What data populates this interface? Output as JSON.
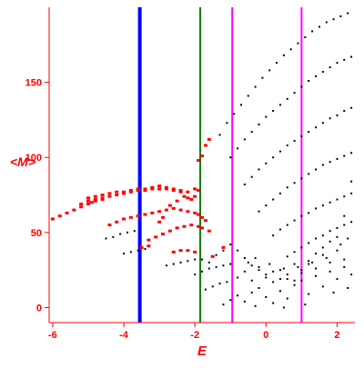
{
  "colors": {
    "axis": "#ff0000",
    "tick_label": "#ff0000",
    "red_points": "#ff0000",
    "black_points": "#000000",
    "blue_line": "#0000ff",
    "green_line": "#008000",
    "magenta_line": "#ff00ff"
  },
  "chart_data": {
    "type": "scatter",
    "title": "",
    "xlabel": "E",
    "ylabel": "<M>",
    "xlim": [
      -6.1,
      2.5
    ],
    "ylim": [
      -10,
      200
    ],
    "xticks": [
      -6,
      -4,
      -2,
      0,
      2
    ],
    "yticks": [
      0,
      50,
      100,
      150
    ],
    "grid": false,
    "legend": "none",
    "vertical_lines": [
      {
        "x": -3.55,
        "color": "#0000ff",
        "weight": "thick"
      },
      {
        "x": -1.85,
        "color": "#008000",
        "weight": "normal"
      },
      {
        "x": -0.95,
        "color": "#ff00ff",
        "weight": "normal"
      },
      {
        "x": 1.0,
        "color": "#ff00ff",
        "weight": "normal"
      }
    ],
    "series": [
      {
        "color": "#ff0000",
        "points": [
          [
            -6.0,
            59
          ],
          [
            -5.8,
            61
          ],
          [
            -5.6,
            63
          ],
          [
            -5.4,
            65
          ],
          [
            -5.2,
            67
          ],
          [
            -5.0,
            69
          ],
          [
            -4.9,
            70
          ],
          [
            -4.8,
            71
          ],
          [
            -4.6,
            72
          ],
          [
            -4.4,
            74
          ],
          [
            -4.2,
            75
          ],
          [
            -4.0,
            76
          ],
          [
            -3.8,
            77
          ],
          [
            -3.6,
            78
          ],
          [
            -3.4,
            78
          ],
          [
            -3.2,
            79
          ],
          [
            -3.0,
            79
          ],
          [
            -2.8,
            79
          ],
          [
            -2.6,
            78
          ],
          [
            -2.4,
            77
          ],
          [
            -2.2,
            73
          ],
          [
            -2.1,
            72
          ],
          [
            -2.0,
            74
          ],
          [
            -1.9,
            78
          ],
          [
            -5.0,
            73
          ],
          [
            -4.8,
            74
          ],
          [
            -4.6,
            75
          ],
          [
            -4.4,
            76
          ],
          [
            -4.2,
            77
          ],
          [
            -4.0,
            77
          ],
          [
            -3.8,
            78
          ],
          [
            -3.6,
            79
          ],
          [
            -3.4,
            79
          ],
          [
            -3.2,
            80
          ],
          [
            -3.0,
            81
          ],
          [
            -2.8,
            80
          ],
          [
            -2.6,
            79
          ],
          [
            -2.4,
            78
          ],
          [
            -2.2,
            77
          ],
          [
            -2.0,
            79
          ],
          [
            -5.2,
            69
          ],
          [
            -5.0,
            71
          ],
          [
            -4.8,
            72
          ],
          [
            -4.6,
            73
          ],
          [
            -4.4,
            55
          ],
          [
            -4.2,
            57
          ],
          [
            -4.0,
            59
          ],
          [
            -3.8,
            60
          ],
          [
            -3.6,
            61
          ],
          [
            -3.4,
            62
          ],
          [
            -3.2,
            63
          ],
          [
            -3.0,
            64
          ],
          [
            -2.8,
            65
          ],
          [
            -2.6,
            66
          ],
          [
            -2.4,
            65
          ],
          [
            -2.2,
            64
          ],
          [
            -2.0,
            63
          ],
          [
            -1.9,
            62
          ],
          [
            -1.8,
            60
          ],
          [
            -1.7,
            58
          ],
          [
            -3.3,
            45
          ],
          [
            -3.1,
            47
          ],
          [
            -2.9,
            49
          ],
          [
            -2.7,
            51
          ],
          [
            -2.5,
            53
          ],
          [
            -2.3,
            54
          ],
          [
            -2.1,
            55
          ],
          [
            -1.9,
            54
          ],
          [
            -1.8,
            53
          ],
          [
            -1.6,
            51
          ],
          [
            -3.5,
            40
          ],
          [
            -3.3,
            41
          ],
          [
            -2.6,
            37
          ],
          [
            -2.4,
            38
          ],
          [
            -2.2,
            38
          ],
          [
            -2.0,
            37
          ],
          [
            -1.5,
            34
          ],
          [
            -1.2,
            40
          ],
          [
            -1.9,
            98
          ],
          [
            -1.8,
            101
          ],
          [
            -1.7,
            108
          ],
          [
            -1.6,
            112
          ],
          [
            -2.3,
            74
          ],
          [
            -2.5,
            71
          ],
          [
            -2.7,
            68
          ],
          [
            -2.9,
            60
          ],
          [
            -3.0,
            57
          ]
        ]
      },
      {
        "color": "#000000",
        "points": [
          [
            -4.5,
            46
          ],
          [
            -4.3,
            47
          ],
          [
            -4.1,
            49
          ],
          [
            -3.9,
            50
          ],
          [
            -3.7,
            51
          ],
          [
            -4.0,
            36
          ],
          [
            -3.8,
            37
          ],
          [
            -3.6,
            38
          ],
          [
            -3.4,
            39
          ],
          [
            -2.8,
            28
          ],
          [
            -2.6,
            29
          ],
          [
            -2.4,
            30
          ],
          [
            -2.2,
            31
          ],
          [
            -2.0,
            32
          ],
          [
            -1.8,
            32
          ],
          [
            -2.0,
            22
          ],
          [
            -1.8,
            24
          ],
          [
            -1.6,
            26
          ],
          [
            -1.4,
            27
          ],
          [
            -1.2,
            28
          ],
          [
            -1.0,
            29
          ],
          [
            -1.7,
            12
          ],
          [
            -1.5,
            14
          ],
          [
            -1.3,
            16
          ],
          [
            -1.1,
            17
          ],
          [
            -1.3,
            115
          ],
          [
            -1.1,
            123
          ],
          [
            -0.9,
            129
          ],
          [
            -0.7,
            135
          ],
          [
            -0.5,
            141
          ],
          [
            -0.3,
            147
          ],
          [
            -0.1,
            153
          ],
          [
            0.1,
            158
          ],
          [
            0.3,
            163
          ],
          [
            0.5,
            168
          ],
          [
            0.7,
            172
          ],
          [
            0.9,
            176
          ],
          [
            1.1,
            180
          ],
          [
            1.3,
            184
          ],
          [
            1.5,
            187
          ],
          [
            1.7,
            190
          ],
          [
            1.9,
            192
          ],
          [
            2.1,
            194
          ],
          [
            2.3,
            196
          ],
          [
            -1.0,
            100
          ],
          [
            -0.8,
            106
          ],
          [
            -0.6,
            112
          ],
          [
            -0.4,
            117
          ],
          [
            -0.2,
            122
          ],
          [
            0.0,
            127
          ],
          [
            0.2,
            131
          ],
          [
            0.4,
            135
          ],
          [
            0.6,
            139
          ],
          [
            0.8,
            143
          ],
          [
            1.0,
            147
          ],
          [
            1.2,
            151
          ],
          [
            1.4,
            154
          ],
          [
            1.6,
            157
          ],
          [
            1.8,
            160
          ],
          [
            2.0,
            163
          ],
          [
            2.2,
            165
          ],
          [
            2.4,
            167
          ],
          [
            -0.6,
            82
          ],
          [
            -0.4,
            87
          ],
          [
            -0.2,
            92
          ],
          [
            0.0,
            96
          ],
          [
            0.2,
            100
          ],
          [
            0.4,
            104
          ],
          [
            0.6,
            108
          ],
          [
            0.8,
            111
          ],
          [
            1.0,
            114
          ],
          [
            1.2,
            117
          ],
          [
            1.4,
            120
          ],
          [
            1.6,
            123
          ],
          [
            1.8,
            126
          ],
          [
            2.0,
            128
          ],
          [
            2.2,
            131
          ],
          [
            2.4,
            133
          ],
          [
            -0.2,
            64
          ],
          [
            0.0,
            68
          ],
          [
            0.2,
            72
          ],
          [
            0.4,
            76
          ],
          [
            0.6,
            80
          ],
          [
            0.8,
            83
          ],
          [
            1.0,
            86
          ],
          [
            1.2,
            89
          ],
          [
            1.4,
            92
          ],
          [
            1.6,
            95
          ],
          [
            1.8,
            97
          ],
          [
            2.0,
            99
          ],
          [
            2.2,
            101
          ],
          [
            2.4,
            103
          ],
          [
            0.2,
            48
          ],
          [
            0.4,
            52
          ],
          [
            0.6,
            55
          ],
          [
            0.8,
            58
          ],
          [
            1.0,
            61
          ],
          [
            1.2,
            63
          ],
          [
            1.4,
            66
          ],
          [
            1.6,
            68
          ],
          [
            1.8,
            70
          ],
          [
            2.0,
            72
          ],
          [
            2.2,
            74
          ],
          [
            2.4,
            76
          ],
          [
            0.6,
            34
          ],
          [
            0.8,
            37
          ],
          [
            1.0,
            40
          ],
          [
            1.2,
            43
          ],
          [
            1.4,
            46
          ],
          [
            1.6,
            48
          ],
          [
            1.8,
            51
          ],
          [
            2.0,
            53
          ],
          [
            2.2,
            55
          ],
          [
            2.4,
            57
          ],
          [
            -1.2,
            2
          ],
          [
            -1.0,
            5
          ],
          [
            -0.8,
            8
          ],
          [
            -0.6,
            4
          ],
          [
            -0.4,
            10
          ],
          [
            -0.2,
            13
          ],
          [
            0.0,
            7
          ],
          [
            0.2,
            3
          ],
          [
            0.4,
            11
          ],
          [
            0.6,
            6
          ],
          [
            0.8,
            15
          ],
          [
            1.0,
            18
          ],
          [
            1.2,
            9
          ],
          [
            1.4,
            21
          ],
          [
            1.6,
            14
          ],
          [
            1.8,
            24
          ],
          [
            2.0,
            19
          ],
          [
            2.2,
            27
          ],
          [
            2.4,
            22
          ],
          [
            -0.8,
            20
          ],
          [
            -0.6,
            24
          ],
          [
            -0.4,
            18
          ],
          [
            -0.2,
            27
          ],
          [
            0.0,
            22
          ],
          [
            0.2,
            17
          ],
          [
            0.4,
            25
          ],
          [
            0.6,
            19
          ],
          [
            0.8,
            29
          ],
          [
            1.0,
            23
          ],
          [
            1.2,
            31
          ],
          [
            1.4,
            26
          ],
          [
            1.6,
            35
          ],
          [
            1.8,
            30
          ],
          [
            2.0,
            38
          ],
          [
            2.2,
            32
          ],
          [
            -0.5,
            30
          ],
          [
            -0.3,
            33
          ],
          [
            0.1,
            29
          ],
          [
            0.5,
            26
          ],
          [
            0.9,
            27
          ],
          [
            1.3,
            30
          ],
          [
            1.7,
            33
          ],
          [
            2.1,
            42
          ],
          [
            2.3,
            46
          ],
          [
            -1.6,
            30
          ],
          [
            -1.4,
            35
          ],
          [
            -1.2,
            38
          ],
          [
            -1.0,
            42
          ],
          [
            -0.8,
            38
          ],
          [
            -0.6,
            33
          ],
          [
            -0.4,
            28
          ],
          [
            -0.2,
            25
          ],
          [
            0.0,
            20
          ],
          [
            0.2,
            24
          ],
          [
            0.4,
            19
          ],
          [
            0.6,
            22
          ],
          [
            0.8,
            18
          ],
          [
            1.0,
            25
          ],
          [
            1.2,
            29
          ],
          [
            1.4,
            36
          ],
          [
            1.6,
            40
          ],
          [
            1.8,
            44
          ],
          [
            2.0,
            47
          ],
          [
            2.2,
            61
          ],
          [
            2.4,
            84
          ],
          [
            -0.3,
            1
          ],
          [
            0.5,
            0
          ],
          [
            1.1,
            2
          ],
          [
            1.9,
            10
          ],
          [
            2.3,
            13
          ]
        ]
      }
    ]
  }
}
